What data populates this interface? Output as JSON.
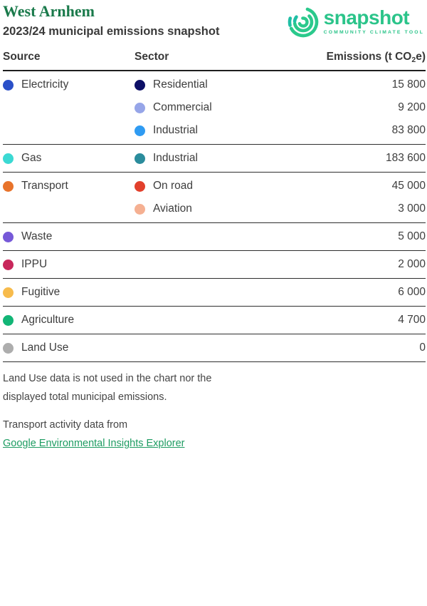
{
  "header": {
    "municipality": "West Arnhem",
    "subtitle": "2023/24 municipal emissions snapshot",
    "title_color": "#1a7a4b",
    "logo": {
      "wordmark": "snapshot",
      "tagline": "COMMUNITY CLIMATE TOOL",
      "brand_green": "#2bc48a",
      "brand_teal": "#1fbfa5"
    }
  },
  "table": {
    "col_source": "Source",
    "col_sector": "Sector",
    "col_emissions_prefix": "Emissions (t CO",
    "col_emissions_sub": "2",
    "col_emissions_suffix": "e)",
    "groups": [
      {
        "source": "Electricity",
        "color": "#2b50c8",
        "rows": [
          {
            "sector": "Residential",
            "color": "#0d0f66",
            "value": "15 800"
          },
          {
            "sector": "Commercial",
            "color": "#96a5e8",
            "value": "9 200"
          },
          {
            "sector": "Industrial",
            "color": "#2f9bf2",
            "value": "83 800"
          }
        ]
      },
      {
        "source": "Gas",
        "color": "#3bd9d3",
        "rows": [
          {
            "sector": "Industrial",
            "color": "#2b8c9c",
            "value": "183 600"
          }
        ]
      },
      {
        "source": "Transport",
        "color": "#e8732b",
        "rows": [
          {
            "sector": "On road",
            "color": "#e2402c",
            "value": "45 000"
          },
          {
            "sector": "Aviation",
            "color": "#f5b092",
            "value": "3 000"
          }
        ]
      },
      {
        "source": "Waste",
        "color": "#7659d8",
        "rows": [
          {
            "sector": "",
            "color": "",
            "value": "5 000"
          }
        ]
      },
      {
        "source": "IPPU",
        "color": "#c8275b",
        "rows": [
          {
            "sector": "",
            "color": "",
            "value": "2 000"
          }
        ]
      },
      {
        "source": "Fugitive",
        "color": "#f7bb4c",
        "rows": [
          {
            "sector": "",
            "color": "",
            "value": "6 000"
          }
        ]
      },
      {
        "source": "Agriculture",
        "color": "#12b576",
        "rows": [
          {
            "sector": "",
            "color": "",
            "value": "4 700"
          }
        ]
      },
      {
        "source": "Land Use",
        "color": "#adadad",
        "rows": [
          {
            "sector": "",
            "color": "",
            "value": "0"
          }
        ]
      }
    ]
  },
  "footer": {
    "note1": "Land Use data is not used in the chart nor the displayed total municipal emissions.",
    "note2": "Transport activity data from",
    "link_label": "Google Environmental Insights Explorer",
    "link_color": "#1e9c62"
  }
}
